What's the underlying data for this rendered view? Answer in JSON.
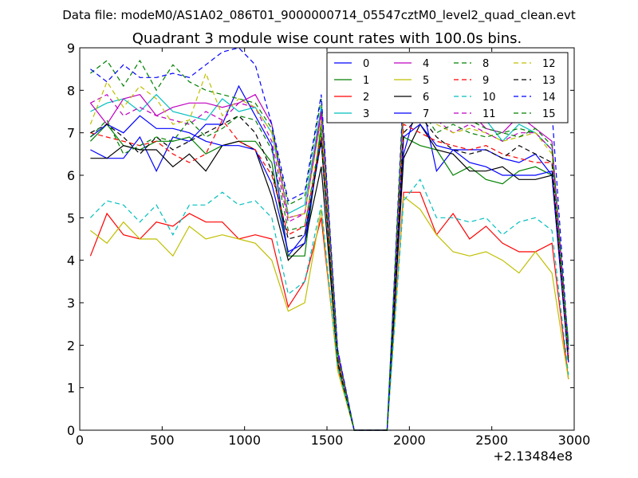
{
  "header": "Data file: modeM0/AS1A02_086T01_9000000714_05547cztM0_level2_quad_clean.evt",
  "chart_data": {
    "type": "line",
    "title": "Quadrant 3 module wise count rates with 100.0s bins.",
    "xlabel": "",
    "ylabel": "",
    "x_offset_label": "+2.13484e8",
    "xlim": [
      0,
      3000
    ],
    "ylim": [
      0,
      9
    ],
    "x_ticks": [
      0,
      500,
      1000,
      1500,
      2000,
      2500,
      3000
    ],
    "y_ticks": [
      0,
      1,
      2,
      3,
      4,
      5,
      6,
      7,
      8,
      9
    ],
    "legend_position": "top-right",
    "x": [
      65,
      165,
      265,
      365,
      465,
      565,
      665,
      765,
      865,
      965,
      1065,
      1165,
      1265,
      1365,
      1465,
      1565,
      1665,
      1765,
      1865,
      1965,
      2065,
      2165,
      2265,
      2365,
      2465,
      2565,
      2665,
      2765,
      2865,
      2965
    ],
    "series": [
      {
        "name": "0",
        "color": "#0000ff",
        "dash": "solid",
        "values": [
          6.6,
          6.4,
          6.4,
          6.9,
          6.1,
          6.9,
          6.8,
          7.2,
          7.2,
          8.1,
          7.4,
          6.7,
          4.1,
          4.6,
          6.8,
          1.6,
          0.0,
          0.0,
          0.0,
          6.5,
          7.9,
          6.1,
          6.6,
          6.6,
          6.6,
          6.4,
          6.3,
          6.5,
          6.0,
          1.6
        ]
      },
      {
        "name": "1",
        "color": "#008000",
        "dash": "solid",
        "values": [
          6.8,
          7.2,
          6.7,
          6.6,
          6.8,
          6.8,
          6.9,
          6.5,
          6.7,
          6.8,
          6.8,
          6.3,
          4.1,
          4.1,
          7.2,
          1.7,
          0.0,
          0.0,
          0.0,
          6.9,
          6.7,
          6.6,
          6.0,
          6.2,
          5.9,
          5.8,
          6.1,
          6.2,
          6.0,
          2.1
        ]
      },
      {
        "name": "2",
        "color": "#ff0000",
        "dash": "solid",
        "values": [
          4.1,
          5.1,
          4.6,
          4.5,
          4.9,
          4.8,
          5.1,
          4.9,
          4.9,
          4.5,
          4.6,
          4.5,
          2.9,
          3.5,
          5.0,
          1.5,
          0.0,
          0.0,
          0.0,
          5.6,
          5.6,
          4.6,
          5.1,
          4.5,
          4.8,
          4.4,
          4.2,
          4.2,
          4.4,
          1.2
        ]
      },
      {
        "name": "3",
        "color": "#00bfbf",
        "dash": "solid",
        "values": [
          7.5,
          7.7,
          7.8,
          7.5,
          7.9,
          7.5,
          7.4,
          7.3,
          7.8,
          7.5,
          7.6,
          7.0,
          5.1,
          5.3,
          7.6,
          1.8,
          0.0,
          0.0,
          0.0,
          7.7,
          7.5,
          7.3,
          7.4,
          7.3,
          7.3,
          6.8,
          7.2,
          7.0,
          6.6,
          2.0
        ]
      },
      {
        "name": "4",
        "color": "#bf00bf",
        "dash": "solid",
        "values": [
          7.7,
          7.2,
          7.8,
          7.9,
          7.4,
          7.6,
          7.7,
          7.7,
          7.6,
          7.7,
          7.9,
          7.2,
          5.0,
          5.1,
          7.5,
          1.8,
          0.0,
          0.0,
          0.0,
          7.8,
          7.6,
          7.4,
          7.3,
          7.5,
          7.1,
          7.0,
          7.4,
          7.1,
          6.8,
          1.9
        ]
      },
      {
        "name": "5",
        "color": "#bfbf00",
        "dash": "solid",
        "values": [
          4.7,
          4.4,
          4.9,
          4.5,
          4.5,
          4.1,
          4.8,
          4.5,
          4.6,
          4.5,
          4.4,
          4.0,
          2.8,
          3.0,
          5.2,
          1.4,
          0.0,
          0.0,
          0.0,
          5.5,
          5.2,
          4.6,
          4.2,
          4.1,
          4.2,
          4.0,
          3.7,
          4.2,
          3.7,
          1.2
        ]
      },
      {
        "name": "6",
        "color": "#000000",
        "dash": "solid",
        "values": [
          6.4,
          6.4,
          6.7,
          6.6,
          6.6,
          6.2,
          6.5,
          6.1,
          6.7,
          6.8,
          6.6,
          5.5,
          4.0,
          4.4,
          6.2,
          1.6,
          0.0,
          0.0,
          0.0,
          6.4,
          7.2,
          6.6,
          6.5,
          6.1,
          6.1,
          6.2,
          5.9,
          5.9,
          6.0,
          1.7
        ]
      },
      {
        "name": "7",
        "color": "#0000ff",
        "dash": "solid",
        "values": [
          6.9,
          7.2,
          7.0,
          7.4,
          7.1,
          7.1,
          7.0,
          6.8,
          6.7,
          6.7,
          6.6,
          5.8,
          4.2,
          4.4,
          6.9,
          1.7,
          0.0,
          0.0,
          0.0,
          6.9,
          7.2,
          6.7,
          6.6,
          6.3,
          6.2,
          6.0,
          6.0,
          6.0,
          6.1,
          1.6
        ]
      },
      {
        "name": "8",
        "color": "#008000",
        "dash": "dashed",
        "values": [
          8.4,
          8.7,
          8.1,
          8.7,
          8.0,
          8.6,
          8.2,
          8.0,
          7.9,
          7.8,
          7.7,
          7.1,
          5.3,
          5.5,
          7.8,
          1.9,
          0.0,
          0.0,
          0.0,
          7.9,
          7.9,
          7.4,
          7.3,
          7.3,
          7.1,
          7.0,
          7.1,
          7.0,
          6.6,
          1.9
        ]
      },
      {
        "name": "9",
        "color": "#ff0000",
        "dash": "dashed",
        "values": [
          7.0,
          6.9,
          6.8,
          6.7,
          6.8,
          6.5,
          6.3,
          6.5,
          7.3,
          6.8,
          6.6,
          6.0,
          4.6,
          4.8,
          6.9,
          1.6,
          0.0,
          0.0,
          0.0,
          7.2,
          7.0,
          6.8,
          6.7,
          6.6,
          6.7,
          6.5,
          6.4,
          6.3,
          6.3,
          1.7
        ]
      },
      {
        "name": "10",
        "color": "#00bfbf",
        "dash": "dashed",
        "values": [
          5.0,
          5.4,
          5.3,
          4.9,
          5.3,
          4.6,
          5.3,
          5.3,
          5.6,
          5.3,
          5.4,
          5.0,
          3.2,
          3.5,
          5.3,
          1.5,
          0.0,
          0.0,
          0.0,
          5.4,
          5.9,
          5.0,
          5.0,
          4.9,
          5.0,
          4.6,
          4.9,
          5.0,
          4.7,
          1.3
        ]
      },
      {
        "name": "11",
        "color": "#bf00bf",
        "dash": "dashed",
        "values": [
          7.7,
          7.9,
          7.4,
          7.6,
          7.4,
          7.3,
          7.2,
          7.5,
          7.3,
          7.7,
          7.6,
          6.8,
          4.9,
          5.1,
          7.4,
          1.8,
          0.0,
          0.0,
          0.0,
          7.5,
          7.3,
          7.3,
          7.0,
          7.2,
          7.0,
          6.8,
          7.0,
          7.0,
          6.6,
          1.8
        ]
      },
      {
        "name": "12",
        "color": "#bfbf00",
        "dash": "dashed",
        "values": [
          7.2,
          8.2,
          7.6,
          8.1,
          7.8,
          7.2,
          7.3,
          8.4,
          7.4,
          7.8,
          7.6,
          7.0,
          5.0,
          5.1,
          7.3,
          1.7,
          0.0,
          0.0,
          0.0,
          7.6,
          7.4,
          7.2,
          7.0,
          7.1,
          7.0,
          6.8,
          6.9,
          7.0,
          6.5,
          1.7
        ]
      },
      {
        "name": "13",
        "color": "#000000",
        "dash": "dashed",
        "values": [
          7.0,
          7.2,
          6.9,
          6.5,
          6.9,
          6.6,
          6.8,
          7.0,
          7.2,
          7.4,
          7.0,
          6.1,
          4.5,
          4.6,
          6.8,
          1.6,
          0.0,
          0.0,
          0.0,
          7.0,
          7.4,
          6.9,
          6.6,
          6.5,
          6.6,
          6.4,
          6.7,
          6.5,
          6.3,
          1.6
        ]
      },
      {
        "name": "14",
        "color": "#0000ff",
        "dash": "dashed",
        "values": [
          8.5,
          8.2,
          8.6,
          8.3,
          8.3,
          8.4,
          8.3,
          8.6,
          8.9,
          9.0,
          8.6,
          7.2,
          5.4,
          5.6,
          7.9,
          1.9,
          0.0,
          0.0,
          0.0,
          8.1,
          8.4,
          8.2,
          8.0,
          8.2,
          8.1,
          7.9,
          8.0,
          7.9,
          7.5,
          1.9
        ]
      },
      {
        "name": "15",
        "color": "#008000",
        "dash": "dashed",
        "values": [
          6.9,
          7.3,
          6.5,
          6.7,
          6.9,
          6.8,
          7.3,
          6.9,
          7.1,
          7.4,
          7.3,
          6.6,
          4.7,
          4.8,
          7.0,
          1.7,
          0.0,
          0.0,
          0.0,
          7.9,
          7.6,
          7.0,
          7.2,
          7.0,
          6.9,
          7.0,
          6.9,
          7.1,
          6.7,
          1.9
        ]
      }
    ]
  }
}
